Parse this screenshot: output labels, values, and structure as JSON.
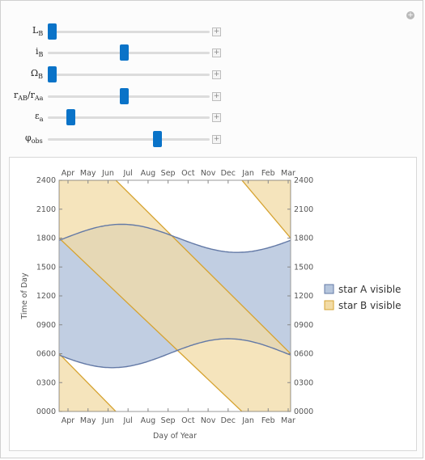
{
  "controls": [
    {
      "label_main": "L",
      "label_sub": "B",
      "position": 0.0
    },
    {
      "label_main": "i",
      "label_sub": "B",
      "position": 0.47
    },
    {
      "label_main": "Ω",
      "label_sub": "B",
      "position": 0.0
    },
    {
      "label_main": "r",
      "label_sub": "AB",
      "label_mid": "/r",
      "label_sub2": "Aa",
      "position": 0.47
    },
    {
      "label_main": "ε",
      "label_sub": "a",
      "position": 0.12
    },
    {
      "label_main": "φ",
      "label_sub": "obs",
      "position": 0.69
    }
  ],
  "chart_data": {
    "type": "area",
    "xlabel": "Day of Year",
    "ylabel": "Time of Day",
    "months": [
      "Apr",
      "May",
      "Jun",
      "Jul",
      "Aug",
      "Sep",
      "Oct",
      "Nov",
      "Dec",
      "Jan",
      "Feb",
      "Mar"
    ],
    "yticks": [
      "0000",
      "0300",
      "0600",
      "0900",
      "1200",
      "1500",
      "1800",
      "2100",
      "2400"
    ],
    "ylim": [
      0,
      2400
    ],
    "series": [
      {
        "name": "star A visible",
        "color": "#b6c6dd",
        "stroke": "#6379a6"
      },
      {
        "name": "star B visible",
        "color": "#f2dba5",
        "stroke": "#d6a331"
      }
    ],
    "legend_position": "right"
  }
}
